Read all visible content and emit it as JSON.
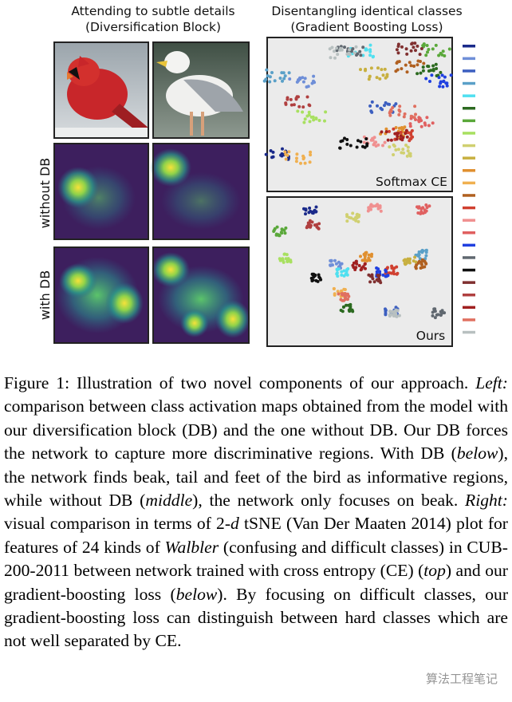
{
  "figure": {
    "left_title": [
      "Attending to subtle details",
      "(Diversification Block)"
    ],
    "right_title": [
      "Disentangling identical classes",
      "(Gradient Boosting Loss)"
    ],
    "row_labels": [
      "without DB",
      "with DB"
    ],
    "panel_labels": [
      "Softmax CE",
      "Ours"
    ]
  },
  "caption": [
    "Figure 1: Illustration of two novel components of our approach. ",
    "Left:",
    " comparison between class activation maps obtained from the model with our diversification block (DB) and the one without DB. Our DB forces the network to capture more discriminative regions. With DB (",
    "below",
    "), the network finds beak, tail and feet of the bird as informative regions, while without DB (",
    "middle",
    "), the network only focuses on beak. ",
    "Right:",
    " visual comparison in terms of 2-",
    "d",
    " tSNE (Van Der Maaten 2014) plot for features of 24 kinds of ",
    "Walbler",
    " (confusing and difficult classes) in CUB-200-2011 between network trained with cross entropy (CE) (",
    "top",
    ") and our gradient-boosting loss (",
    "below",
    "). By focusing on difficult classes, our gradient-boosting loss can distinguish between hard classes which are not well separated by CE."
  ],
  "watermark": "算法工程笔记"
}
